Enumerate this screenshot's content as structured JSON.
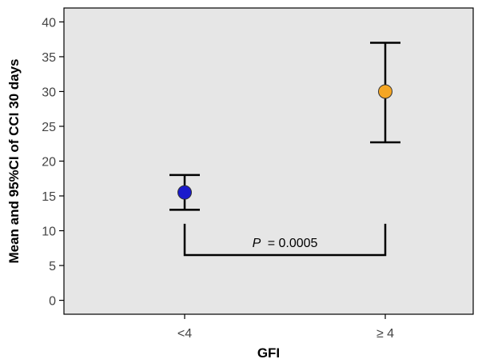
{
  "chart_data": {
    "type": "scatter",
    "title": "",
    "xlabel": "GFI",
    "ylabel": "Mean and 95%CI of CCI 30 days",
    "categories": [
      "<4",
      "≥ 4"
    ],
    "points": [
      {
        "category": "<4",
        "mean": 15.5,
        "ci_low": 13.0,
        "ci_high": 18.0,
        "color": "#1a1acc"
      },
      {
        "category": "≥ 4",
        "mean": 30.0,
        "ci_low": 22.7,
        "ci_high": 37.0,
        "color": "#f5a623"
      }
    ],
    "ylim": [
      -2,
      42
    ],
    "yticks": [
      0,
      5,
      10,
      15,
      20,
      25,
      30,
      35,
      40
    ],
    "grid": false,
    "panel_background": "#e6e6e6",
    "annotation": {
      "p_label": "P",
      "p_value": "= 0.0005",
      "bracket_top": 11,
      "bracket_bottom": 6.5
    }
  }
}
